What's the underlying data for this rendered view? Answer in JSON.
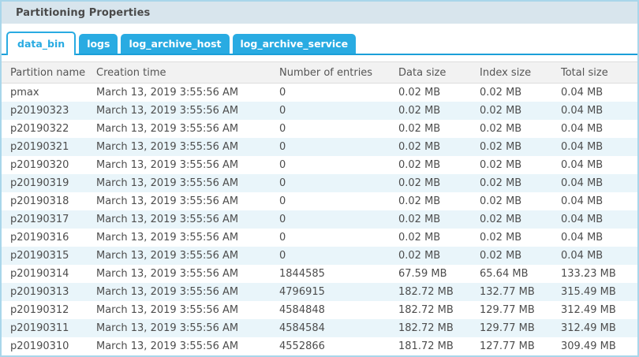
{
  "panel": {
    "title": "Partitioning Properties"
  },
  "tabs": {
    "items": [
      {
        "label": "data_bin",
        "active": true
      },
      {
        "label": "logs",
        "active": false
      },
      {
        "label": "log_archive_host",
        "active": false
      },
      {
        "label": "log_archive_service",
        "active": false
      }
    ]
  },
  "table": {
    "columns": [
      "Partition name",
      "Creation time",
      "Number of entries",
      "Data size",
      "Index size",
      "Total size"
    ],
    "rows": [
      [
        "pmax",
        "March 13, 2019 3:55:56 AM",
        "0",
        "0.02 MB",
        "0.02 MB",
        "0.04 MB"
      ],
      [
        "p20190323",
        "March 13, 2019 3:55:56 AM",
        "0",
        "0.02 MB",
        "0.02 MB",
        "0.04 MB"
      ],
      [
        "p20190322",
        "March 13, 2019 3:55:56 AM",
        "0",
        "0.02 MB",
        "0.02 MB",
        "0.04 MB"
      ],
      [
        "p20190321",
        "March 13, 2019 3:55:56 AM",
        "0",
        "0.02 MB",
        "0.02 MB",
        "0.04 MB"
      ],
      [
        "p20190320",
        "March 13, 2019 3:55:56 AM",
        "0",
        "0.02 MB",
        "0.02 MB",
        "0.04 MB"
      ],
      [
        "p20190319",
        "March 13, 2019 3:55:56 AM",
        "0",
        "0.02 MB",
        "0.02 MB",
        "0.04 MB"
      ],
      [
        "p20190318",
        "March 13, 2019 3:55:56 AM",
        "0",
        "0.02 MB",
        "0.02 MB",
        "0.04 MB"
      ],
      [
        "p20190317",
        "March 13, 2019 3:55:56 AM",
        "0",
        "0.02 MB",
        "0.02 MB",
        "0.04 MB"
      ],
      [
        "p20190316",
        "March 13, 2019 3:55:56 AM",
        "0",
        "0.02 MB",
        "0.02 MB",
        "0.04 MB"
      ],
      [
        "p20190315",
        "March 13, 2019 3:55:56 AM",
        "0",
        "0.02 MB",
        "0.02 MB",
        "0.04 MB"
      ],
      [
        "p20190314",
        "March 13, 2019 3:55:56 AM",
        "1844585",
        "67.59 MB",
        "65.64 MB",
        "133.23 MB"
      ],
      [
        "p20190313",
        "March 13, 2019 3:55:56 AM",
        "4796915",
        "182.72 MB",
        "132.77 MB",
        "315.49 MB"
      ],
      [
        "p20190312",
        "March 13, 2019 3:55:56 AM",
        "4584848",
        "182.72 MB",
        "129.77 MB",
        "312.49 MB"
      ],
      [
        "p20190311",
        "March 13, 2019 3:55:56 AM",
        "4584584",
        "182.72 MB",
        "129.77 MB",
        "312.49 MB"
      ],
      [
        "p20190310",
        "March 13, 2019 3:55:56 AM",
        "4552866",
        "181.72 MB",
        "127.77 MB",
        "309.49 MB"
      ]
    ]
  },
  "colors": {
    "accent_blue": "#29abe2",
    "tab_underline": "#1b9fd8",
    "panel_border": "#a9d6ea",
    "title_bar_bg": "#d8e5ed",
    "table_header_bg": "#f2f2f2",
    "row_alt_bg": "#e9f5fa"
  }
}
